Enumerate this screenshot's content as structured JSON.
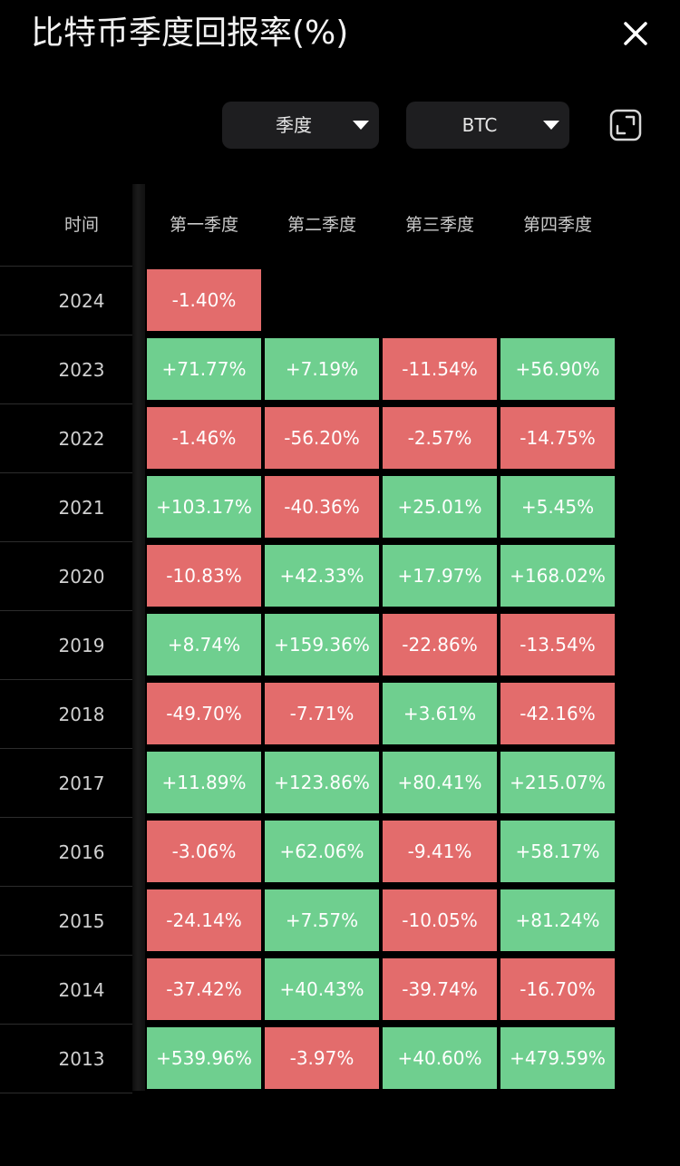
{
  "header": {
    "title": "比特币季度回报率(%)"
  },
  "toolbar": {
    "period_select": "季度",
    "asset_select": "BTC"
  },
  "colors": {
    "background": "#000000",
    "positive": "#6fcf8f",
    "negative": "#e36c6c",
    "dropdown_bg": "#1e1e20"
  },
  "icons": {
    "close": "close-icon",
    "caret": "caret-down-icon",
    "expand": "expand-icon"
  },
  "table": {
    "time_header": "时间",
    "quarter_headers": [
      "第一季度",
      "第二季度",
      "第三季度",
      "第四季度"
    ],
    "rows": [
      {
        "year": "2024",
        "values": [
          "-1.40%",
          null,
          null,
          null
        ]
      },
      {
        "year": "2023",
        "values": [
          "+71.77%",
          "+7.19%",
          "-11.54%",
          "+56.90%"
        ]
      },
      {
        "year": "2022",
        "values": [
          "-1.46%",
          "-56.20%",
          "-2.57%",
          "-14.75%"
        ]
      },
      {
        "year": "2021",
        "values": [
          "+103.17%",
          "-40.36%",
          "+25.01%",
          "+5.45%"
        ]
      },
      {
        "year": "2020",
        "values": [
          "-10.83%",
          "+42.33%",
          "+17.97%",
          "+168.02%"
        ]
      },
      {
        "year": "2019",
        "values": [
          "+8.74%",
          "+159.36%",
          "-22.86%",
          "-13.54%"
        ]
      },
      {
        "year": "2018",
        "values": [
          "-49.70%",
          "-7.71%",
          "+3.61%",
          "-42.16%"
        ]
      },
      {
        "year": "2017",
        "values": [
          "+11.89%",
          "+123.86%",
          "+80.41%",
          "+215.07%"
        ]
      },
      {
        "year": "2016",
        "values": [
          "-3.06%",
          "+62.06%",
          "-9.41%",
          "+58.17%"
        ]
      },
      {
        "year": "2015",
        "values": [
          "-24.14%",
          "+7.57%",
          "-10.05%",
          "+81.24%"
        ]
      },
      {
        "year": "2014",
        "values": [
          "-37.42%",
          "+40.43%",
          "-39.74%",
          "-16.70%"
        ]
      },
      {
        "year": "2013",
        "values": [
          "+539.96%",
          "-3.97%",
          "+40.60%",
          "+479.59%"
        ]
      }
    ]
  }
}
